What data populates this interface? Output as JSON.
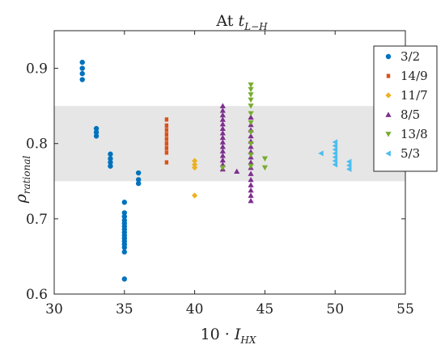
{
  "chart_data": {
    "type": "scatter",
    "title_main": "At ",
    "title_var": "t",
    "title_sub": "L−H",
    "xlabel_main": "10 · ",
    "xlabel_var": "I",
    "xlabel_sub": "HX",
    "ylabel_var": "ρ",
    "ylabel_sub": "rational",
    "xlim": [
      30,
      55
    ],
    "ylim": [
      0.6,
      0.95
    ],
    "xticks": [
      30,
      35,
      40,
      45,
      50,
      55
    ],
    "xtick_labels": [
      "30",
      "35",
      "40",
      "45",
      "50",
      "55"
    ],
    "yticks": [
      0.6,
      0.7,
      0.8,
      0.9
    ],
    "ytick_labels": [
      "0.6",
      "0.7",
      "0.8",
      "0.9"
    ],
    "band": {
      "ymin": 0.75,
      "ymax": 0.85,
      "color": "#e6e6e6"
    },
    "legend_position": "top-right",
    "series": [
      {
        "name": "3/2",
        "marker": "circle",
        "color": "#0072BD",
        "points": [
          [
            32,
            0.908
          ],
          [
            32,
            0.9
          ],
          [
            32,
            0.893
          ],
          [
            32,
            0.885
          ],
          [
            33,
            0.82
          ],
          [
            33,
            0.815
          ],
          [
            33,
            0.81
          ],
          [
            34,
            0.786
          ],
          [
            34,
            0.78
          ],
          [
            34,
            0.775
          ],
          [
            34,
            0.77
          ],
          [
            35,
            0.722
          ],
          [
            35,
            0.708
          ],
          [
            35,
            0.703
          ],
          [
            35,
            0.698
          ],
          [
            35,
            0.694
          ],
          [
            35,
            0.69
          ],
          [
            35,
            0.686
          ],
          [
            35,
            0.682
          ],
          [
            35,
            0.678
          ],
          [
            35,
            0.674
          ],
          [
            35,
            0.67
          ],
          [
            35,
            0.666
          ],
          [
            35,
            0.662
          ],
          [
            35,
            0.656
          ],
          [
            35,
            0.62
          ],
          [
            36,
            0.761
          ],
          [
            36,
            0.752
          ],
          [
            36,
            0.747
          ]
        ]
      },
      {
        "name": "14/9",
        "marker": "square",
        "color": "#D95319",
        "points": [
          [
            38,
            0.832
          ],
          [
            38,
            0.824
          ],
          [
            38,
            0.818
          ],
          [
            38,
            0.812
          ],
          [
            38,
            0.806
          ],
          [
            38,
            0.8
          ],
          [
            38,
            0.794
          ],
          [
            38,
            0.788
          ],
          [
            38,
            0.775
          ]
        ]
      },
      {
        "name": "11/7",
        "marker": "diamond",
        "color": "#EDB120",
        "points": [
          [
            40,
            0.777
          ],
          [
            40,
            0.772
          ],
          [
            40,
            0.768
          ],
          [
            40,
            0.731
          ]
        ]
      },
      {
        "name": "8/5",
        "marker": "triangle-up",
        "color": "#7E2F8E",
        "points": [
          [
            42,
            0.85
          ],
          [
            42,
            0.844
          ],
          [
            42,
            0.838
          ],
          [
            42,
            0.832
          ],
          [
            42,
            0.826
          ],
          [
            42,
            0.82
          ],
          [
            42,
            0.814
          ],
          [
            42,
            0.808
          ],
          [
            42,
            0.802
          ],
          [
            42,
            0.796
          ],
          [
            42,
            0.79
          ],
          [
            42,
            0.784
          ],
          [
            42,
            0.778
          ],
          [
            42,
            0.772
          ],
          [
            42,
            0.766
          ],
          [
            43,
            0.763
          ],
          [
            44,
            0.835
          ],
          [
            44,
            0.825
          ],
          [
            44,
            0.818
          ],
          [
            44,
            0.81
          ],
          [
            44,
            0.803
          ],
          [
            44,
            0.796
          ],
          [
            44,
            0.789
          ],
          [
            44,
            0.782
          ],
          [
            44,
            0.775
          ],
          [
            44,
            0.768
          ],
          [
            44,
            0.76
          ],
          [
            44,
            0.752
          ],
          [
            44,
            0.745
          ],
          [
            44,
            0.738
          ],
          [
            44,
            0.731
          ],
          [
            44,
            0.724
          ]
        ]
      },
      {
        "name": "13/8",
        "marker": "triangle-down",
        "color": "#77AC30",
        "points": [
          [
            44,
            0.878
          ],
          [
            44,
            0.872
          ],
          [
            44,
            0.865
          ],
          [
            44,
            0.858
          ],
          [
            44,
            0.85
          ],
          [
            44,
            0.84
          ],
          [
            44,
            0.828
          ],
          [
            44,
            0.815
          ],
          [
            44,
            0.8
          ],
          [
            44,
            0.785
          ],
          [
            44,
            0.77
          ],
          [
            42,
            0.768
          ],
          [
            45,
            0.78
          ],
          [
            45,
            0.768
          ]
        ]
      },
      {
        "name": "5/3",
        "marker": "triangle-left",
        "color": "#4DBEEE",
        "points": [
          [
            49,
            0.787
          ],
          [
            50,
            0.802
          ],
          [
            50,
            0.797
          ],
          [
            50,
            0.792
          ],
          [
            50,
            0.787
          ],
          [
            50,
            0.782
          ],
          [
            50,
            0.777
          ],
          [
            50,
            0.772
          ],
          [
            51,
            0.776
          ],
          [
            51,
            0.771
          ],
          [
            51,
            0.766
          ]
        ]
      }
    ]
  }
}
